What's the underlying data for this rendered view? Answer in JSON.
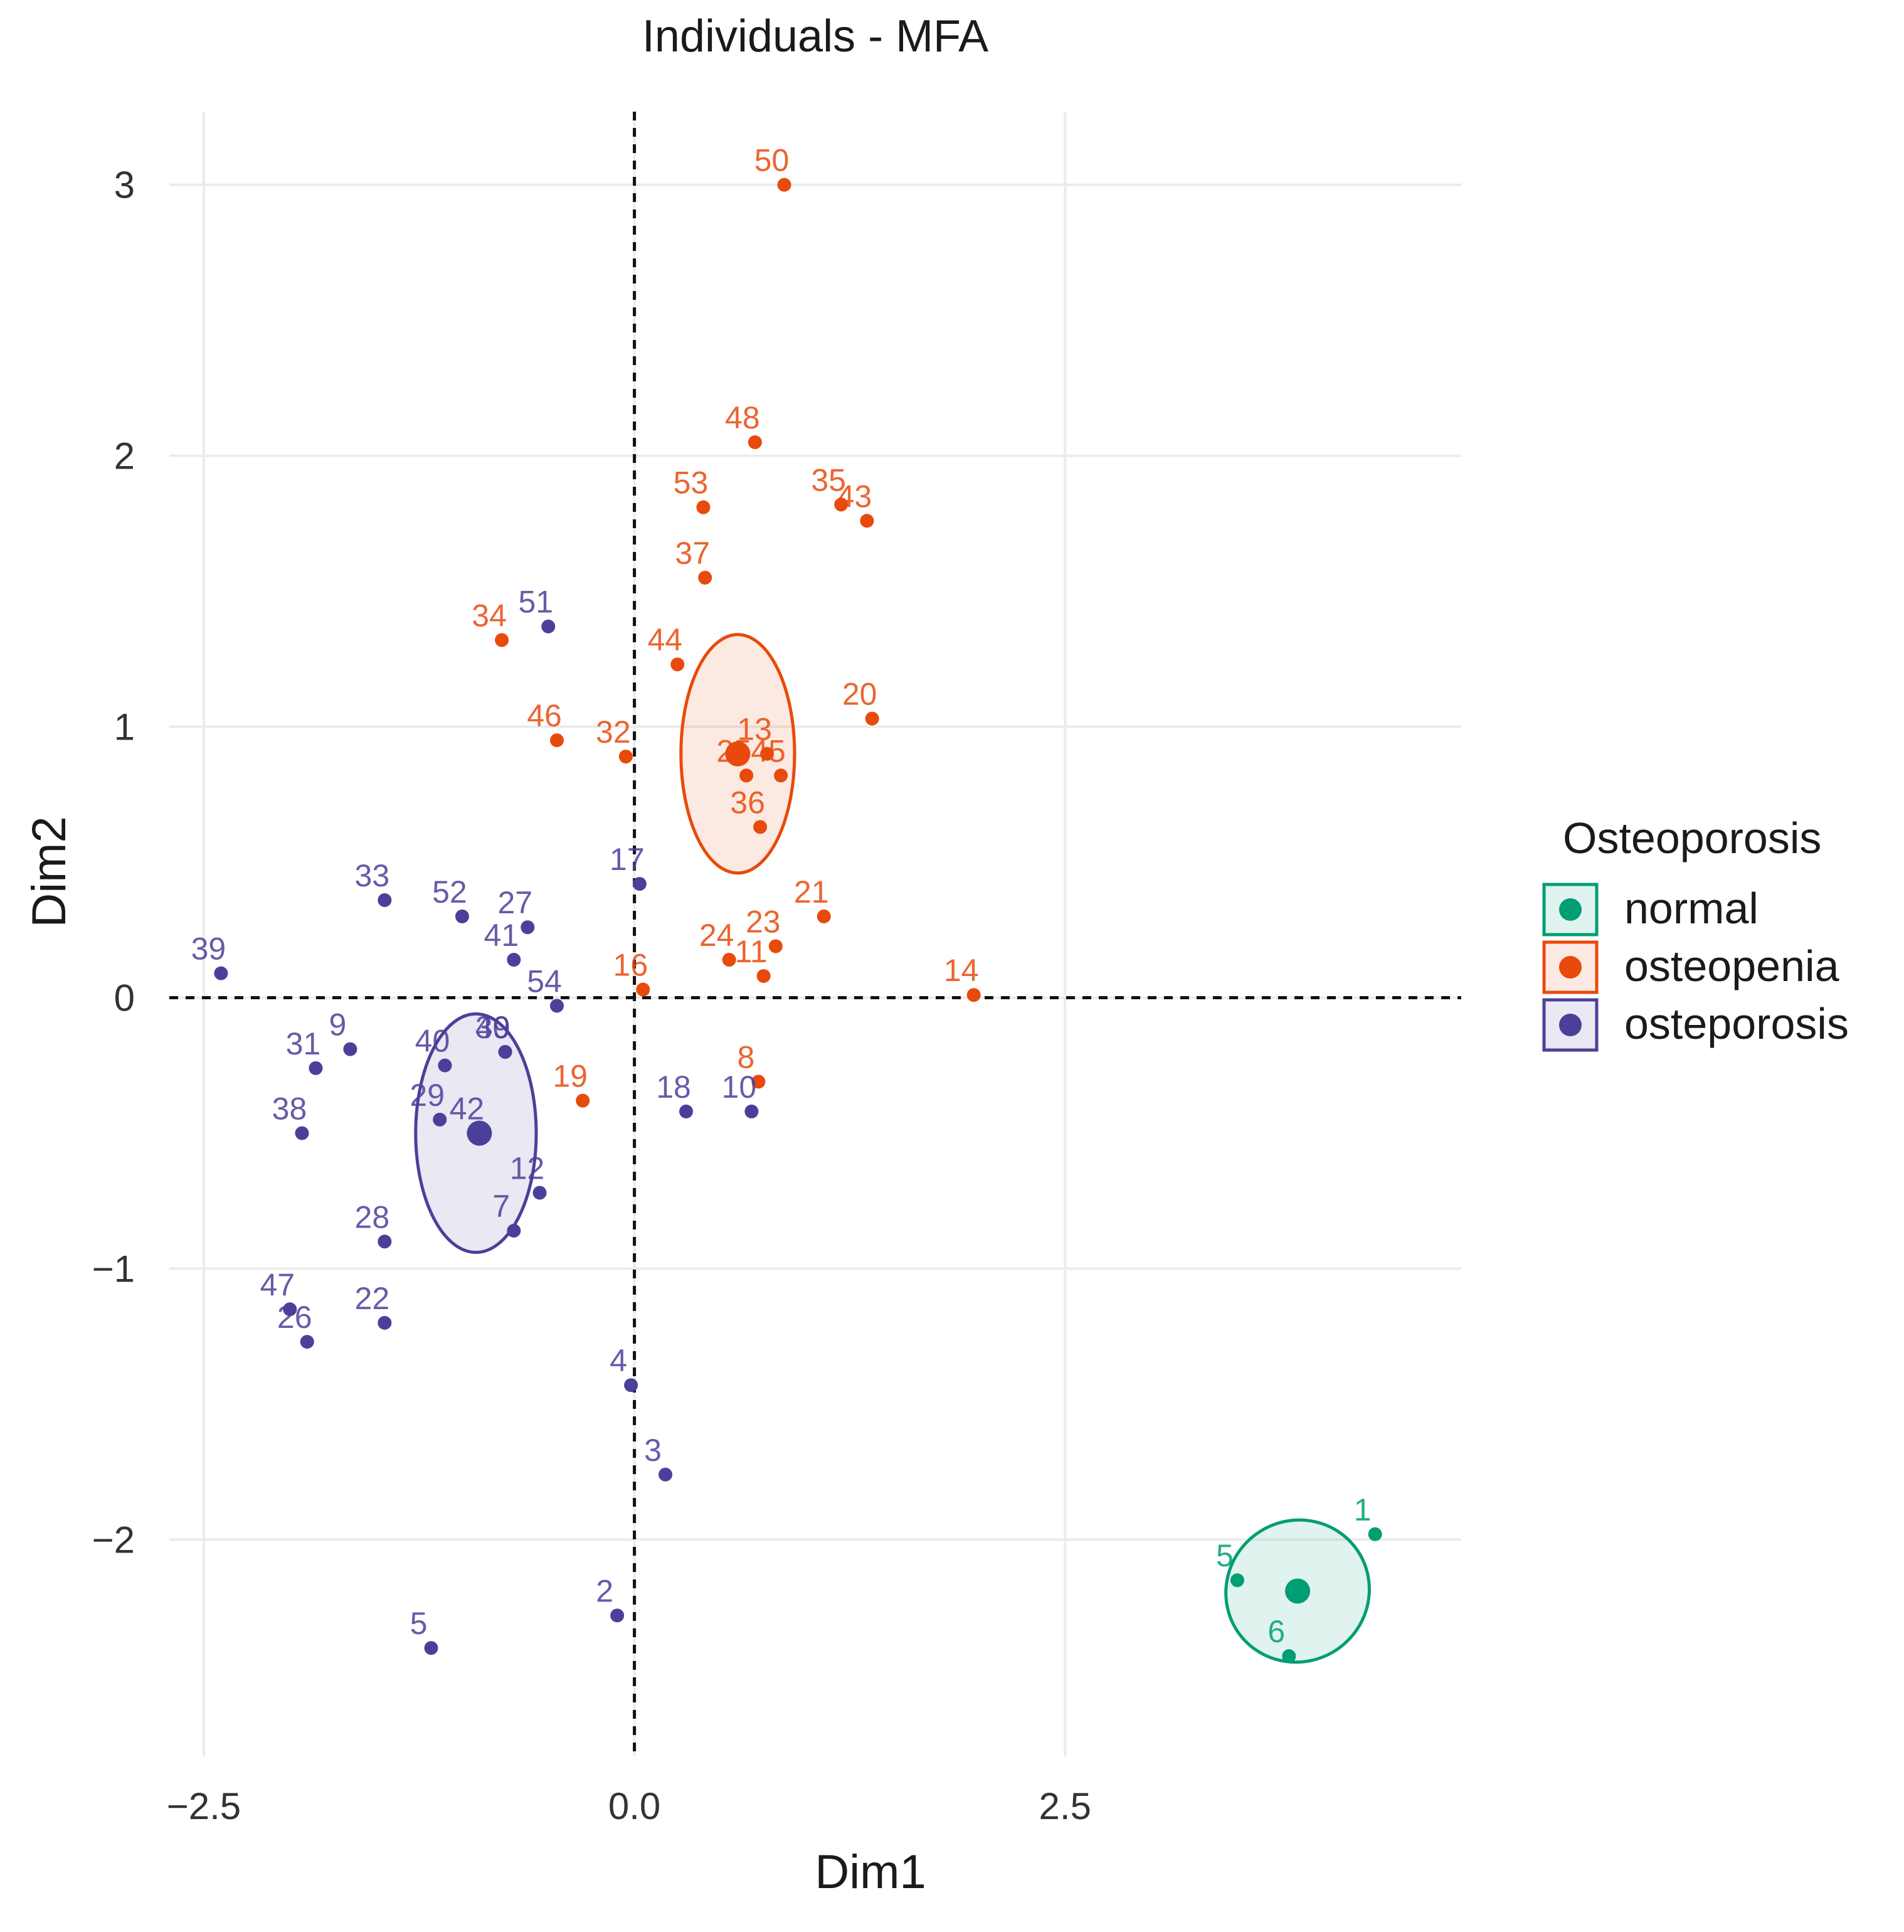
{
  "chart_data": {
    "type": "scatter",
    "title": "Individuals - MFA",
    "xlabel": "Dim1",
    "ylabel": "Dim2",
    "xlim": [
      -2.7,
      4.8
    ],
    "ylim": [
      -2.8,
      3.27
    ],
    "x_ticks": [
      -2.5,
      0.0,
      2.5
    ],
    "x_tick_labels": [
      "−2.5",
      "0.0",
      "2.5"
    ],
    "y_ticks": [
      -2,
      -1,
      0,
      1,
      2,
      3
    ],
    "y_tick_labels": [
      "−2",
      "−1",
      "0",
      "1",
      "2",
      "3"
    ],
    "grid": true,
    "reference_lines": {
      "x": 0,
      "y": 0,
      "style": "dashed"
    },
    "legend": {
      "title": "Osteoporosis",
      "position": "right",
      "entries": [
        "normal",
        "osteopenia",
        "osteporosis"
      ]
    },
    "series": [
      {
        "name": "normal",
        "color": "#009E73",
        "points": [
          {
            "label": "1",
            "x": 4.3,
            "y": -1.98
          },
          {
            "label": "5",
            "x": 3.5,
            "y": -2.15
          },
          {
            "label": "6",
            "x": 3.8,
            "y": -2.43
          }
        ],
        "centroid": {
          "x": 3.85,
          "y": -2.19
        },
        "ellipse": {
          "cx": 3.85,
          "cy": -2.19,
          "rx": 0.42,
          "ry": 0.26,
          "angle": 35
        }
      },
      {
        "name": "osteopenia",
        "color": "#E84A0C",
        "points": [
          {
            "label": "50",
            "x": 0.87,
            "y": 3.0
          },
          {
            "label": "48",
            "x": 0.7,
            "y": 2.05
          },
          {
            "label": "35",
            "x": 1.2,
            "y": 1.82
          },
          {
            "label": "43",
            "x": 1.35,
            "y": 1.76
          },
          {
            "label": "53",
            "x": 0.4,
            "y": 1.81
          },
          {
            "label": "37",
            "x": 0.41,
            "y": 1.55
          },
          {
            "label": "34",
            "x": -0.77,
            "y": 1.32
          },
          {
            "label": "44",
            "x": 0.25,
            "y": 1.23
          },
          {
            "label": "20",
            "x": 1.38,
            "y": 1.03
          },
          {
            "label": "46",
            "x": -0.45,
            "y": 0.95
          },
          {
            "label": "32",
            "x": -0.05,
            "y": 0.89
          },
          {
            "label": "13",
            "x": 0.77,
            "y": 0.9
          },
          {
            "label": "25",
            "x": 0.65,
            "y": 0.82
          },
          {
            "label": "45",
            "x": 0.85,
            "y": 0.82
          },
          {
            "label": "36",
            "x": 0.73,
            "y": 0.63
          },
          {
            "label": "21",
            "x": 1.1,
            "y": 0.3
          },
          {
            "label": "24",
            "x": 0.55,
            "y": 0.14
          },
          {
            "label": "23",
            "x": 0.82,
            "y": 0.19
          },
          {
            "label": "11",
            "x": 0.75,
            "y": 0.08
          },
          {
            "label": "14",
            "x": 1.97,
            "y": 0.01
          },
          {
            "label": "16",
            "x": 0.05,
            "y": 0.03
          },
          {
            "label": "8",
            "x": 0.72,
            "y": -0.31
          },
          {
            "label": "19",
            "x": -0.3,
            "y": -0.38
          }
        ],
        "centroid": {
          "x": 0.6,
          "y": 0.9
        },
        "ellipse": {
          "cx": 0.6,
          "cy": 0.9,
          "rx": 0.33,
          "ry": 0.44,
          "angle": 0
        }
      },
      {
        "name": "osteporosis",
        "color": "#4B4099",
        "points": [
          {
            "label": "51",
            "x": -0.5,
            "y": 1.37
          },
          {
            "label": "17",
            "x": 0.03,
            "y": 0.42
          },
          {
            "label": "52",
            "x": -1.0,
            "y": 0.3
          },
          {
            "label": "27",
            "x": -0.62,
            "y": 0.26
          },
          {
            "label": "33",
            "x": -1.45,
            "y": 0.36
          },
          {
            "label": "41",
            "x": -0.7,
            "y": 0.14
          },
          {
            "label": "39",
            "x": -2.4,
            "y": 0.09
          },
          {
            "label": "54",
            "x": -0.45,
            "y": -0.03
          },
          {
            "label": "49",
            "x": -0.75,
            "y": -0.2
          },
          {
            "label": "9",
            "x": -1.65,
            "y": -0.19
          },
          {
            "label": "40",
            "x": -1.1,
            "y": -0.25
          },
          {
            "label": "30",
            "x": -0.75,
            "y": -0.2
          },
          {
            "label": "31",
            "x": -1.85,
            "y": -0.26
          },
          {
            "label": "29",
            "x": -1.13,
            "y": -0.45
          },
          {
            "label": "38",
            "x": -1.93,
            "y": -0.5
          },
          {
            "label": "42",
            "x": -0.9,
            "y": -0.5
          },
          {
            "label": "12",
            "x": -0.55,
            "y": -0.72
          },
          {
            "label": "28",
            "x": -1.45,
            "y": -0.9
          },
          {
            "label": "7",
            "x": -0.7,
            "y": -0.86
          },
          {
            "label": "18",
            "x": 0.3,
            "y": -0.42
          },
          {
            "label": "10",
            "x": 0.68,
            "y": -0.42
          },
          {
            "label": "47",
            "x": -2.0,
            "y": -1.15
          },
          {
            "label": "22",
            "x": -1.45,
            "y": -1.2
          },
          {
            "label": "26",
            "x": -1.9,
            "y": -1.27
          },
          {
            "label": "4",
            "x": -0.02,
            "y": -1.43
          },
          {
            "label": "3",
            "x": 0.18,
            "y": -1.76
          },
          {
            "label": "2",
            "x": -0.1,
            "y": -2.28
          },
          {
            "label": "5",
            "x": -1.18,
            "y": -2.4
          }
        ],
        "centroid": {
          "x": -0.9,
          "y": -0.5
        },
        "ellipse": {
          "cx": -0.92,
          "cy": -0.5,
          "rx": 0.35,
          "ry": 0.44,
          "angle": 0
        }
      }
    ]
  }
}
